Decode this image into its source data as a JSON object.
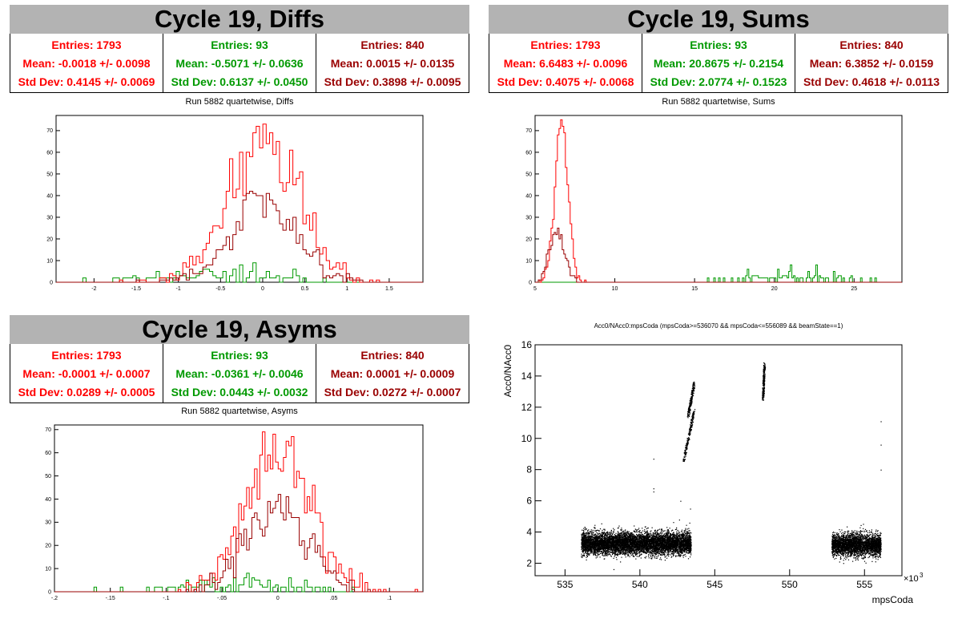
{
  "diffs": {
    "title": "Cycle 19, Diffs",
    "stats": [
      {
        "entries": "Entries: 1793",
        "mean": "Mean: -0.0018 +/- 0.0098",
        "std": "Std Dev: 0.4145 +/- 0.0069",
        "color": "#ff0000"
      },
      {
        "entries": "Entries: 93",
        "mean": "Mean: -0.5071 +/- 0.0636",
        "std": "Std Dev: 0.6137 +/- 0.0450",
        "color": "#009900"
      },
      {
        "entries": "Entries: 840",
        "mean": "Mean: 0.0015 +/- 0.0135",
        "std": "Std Dev: 0.3898 +/- 0.0095",
        "color": "#990000"
      }
    ],
    "subtitle": "Run 5882 quartetwise, Diffs"
  },
  "sums": {
    "title": "Cycle 19, Sums",
    "stats": [
      {
        "entries": "Entries: 1793",
        "mean": "Mean: 6.6483 +/- 0.0096",
        "std": "Std Dev: 0.4075 +/- 0.0068",
        "color": "#ff0000"
      },
      {
        "entries": "Entries: 93",
        "mean": "Mean: 20.8675 +/- 0.2154",
        "std": "Std Dev: 2.0774 +/- 0.1523",
        "color": "#009900"
      },
      {
        "entries": "Entries: 840",
        "mean": "Mean: 6.3852 +/- 0.0159",
        "std": "Std Dev: 0.4618 +/- 0.0113",
        "color": "#990000"
      }
    ],
    "subtitle": "Run 5882 quartetwise, Sums"
  },
  "asyms": {
    "title": "Cycle 19, Asyms",
    "stats": [
      {
        "entries": "Entries: 1793",
        "mean": "Mean: -0.0001 +/- 0.0007",
        "std": "Std Dev: 0.0289 +/- 0.0005",
        "color": "#ff0000"
      },
      {
        "entries": "Entries: 93",
        "mean": "Mean: -0.0361 +/- 0.0046",
        "std": "Std Dev: 0.0443 +/- 0.0032",
        "color": "#009900"
      },
      {
        "entries": "Entries: 840",
        "mean": "Mean: 0.0001 +/- 0.0009",
        "std": "Std Dev: 0.0272 +/- 0.0007",
        "color": "#990000"
      }
    ],
    "subtitle": "Run 5882 quartetwise, Asyms"
  },
  "chart_data": [
    {
      "id": "diffs",
      "type": "histogram",
      "xlim": [
        -2.45,
        1.9
      ],
      "ylim": [
        0,
        77
      ],
      "xticks": [
        -2,
        -1.5,
        -1,
        -0.5,
        0,
        0.5,
        1,
        1.5
      ],
      "yticks": [
        0,
        10,
        20,
        30,
        40,
        50,
        60,
        70
      ],
      "series": [
        {
          "color": "#ff0000",
          "mean": -0.0018,
          "std": 0.4145,
          "entries": 1793,
          "peak": 73
        },
        {
          "color": "#990000",
          "mean": 0.0015,
          "std": 0.3898,
          "entries": 840,
          "peak": 42
        },
        {
          "color": "#009900",
          "mean": -0.5071,
          "std": 0.6137,
          "entries": 93,
          "peak": 9
        }
      ]
    },
    {
      "id": "sums",
      "type": "histogram",
      "xlim": [
        5,
        28
      ],
      "ylim": [
        0,
        77
      ],
      "xticks": [
        5,
        10,
        15,
        20,
        25
      ],
      "yticks": [
        0,
        10,
        20,
        30,
        40,
        50,
        60,
        70
      ],
      "series": [
        {
          "color": "#ff0000",
          "mean": 6.6483,
          "std": 0.4075,
          "entries": 1793,
          "peak": 75
        },
        {
          "color": "#990000",
          "mean": 6.3852,
          "std": 0.4618,
          "entries": 840,
          "peak": 25
        },
        {
          "color": "#009900",
          "mean": 20.8675,
          "std": 2.0774,
          "entries": 93,
          "peak": 8
        }
      ]
    },
    {
      "id": "asyms",
      "type": "histogram",
      "xlim": [
        -0.2,
        0.13
      ],
      "ylim": [
        0,
        72
      ],
      "xticks": [
        -0.2,
        -0.15,
        -0.1,
        -0.05,
        0,
        0.05,
        0.1
      ],
      "yticks": [
        0,
        10,
        20,
        30,
        40,
        50,
        60,
        70
      ],
      "series": [
        {
          "color": "#ff0000",
          "mean": -0.0001,
          "std": 0.0289,
          "entries": 1793,
          "peak": 69
        },
        {
          "color": "#990000",
          "mean": 0.0001,
          "std": 0.0272,
          "entries": 840,
          "peak": 42
        },
        {
          "color": "#009900",
          "mean": -0.0361,
          "std": 0.0443,
          "entries": 93,
          "peak": 8
        }
      ]
    },
    {
      "id": "scatter",
      "type": "scatter",
      "title": "Acc0/NAcc0:mpsCoda (mpsCoda>=536070 && mpsCoda<=556089 && beamState==1)",
      "xlabel": "mpsCoda",
      "ylabel": "Acc0/NAcc0",
      "xscale_label": "×10",
      "xscale_exp": "3",
      "xlim": [
        533,
        557.5
      ],
      "ylim": [
        1.2,
        16
      ],
      "xticks": [
        535,
        540,
        545,
        550,
        555
      ],
      "yticks": [
        2,
        4,
        6,
        8,
        10,
        12,
        14,
        16
      ],
      "clusters": [
        {
          "x": [
            536.07,
            543.4
          ],
          "y_center": 3.3,
          "y_spread": 0.35
        },
        {
          "x": [
            552.8,
            556.08
          ],
          "y_center": 3.2,
          "y_spread": 0.35
        }
      ],
      "streaks": [
        {
          "x": [
            542.9,
            543.6
          ],
          "y": [
            8.6,
            11.8
          ]
        },
        {
          "x": [
            543.2,
            543.6
          ],
          "y": [
            11.5,
            13.5
          ]
        },
        {
          "x": [
            548.2,
            548.3
          ],
          "y": [
            12.6,
            14.8
          ]
        }
      ],
      "outliers": [
        [
          540.9,
          8.7
        ],
        [
          540.9,
          6.8
        ],
        [
          540.9,
          6.6
        ],
        [
          542.7,
          6.0
        ],
        [
          556.08,
          11.1
        ],
        [
          556.08,
          9.6
        ],
        [
          556.08,
          8.0
        ],
        [
          543.3,
          4.6
        ],
        [
          543.35,
          5.5
        ]
      ]
    }
  ]
}
